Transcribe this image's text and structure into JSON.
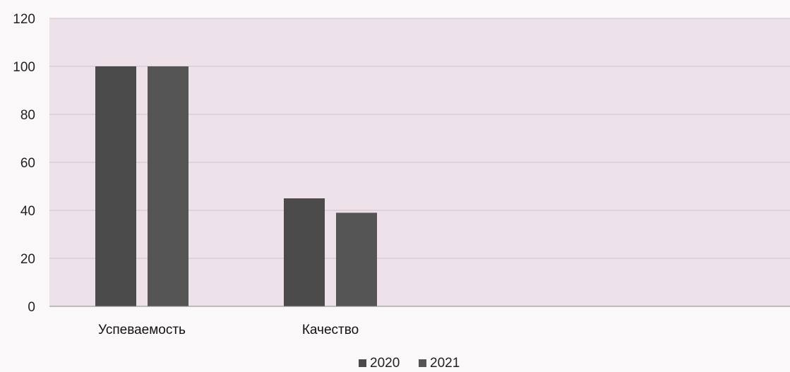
{
  "chart_data": {
    "type": "bar",
    "categories": [
      "Успеваемость",
      "Качество"
    ],
    "series": [
      {
        "name": "2020",
        "values": [
          100,
          45
        ],
        "color": "#4b4b4b"
      },
      {
        "name": "2021",
        "values": [
          100,
          39
        ],
        "color": "#555555"
      }
    ],
    "y_ticks": [
      "0",
      "20",
      "40",
      "60",
      "80",
      "100",
      "120"
    ],
    "ylim": [
      0,
      120
    ],
    "grid": true,
    "legend": "bottom-center",
    "plot_background": "#ede2ea"
  }
}
